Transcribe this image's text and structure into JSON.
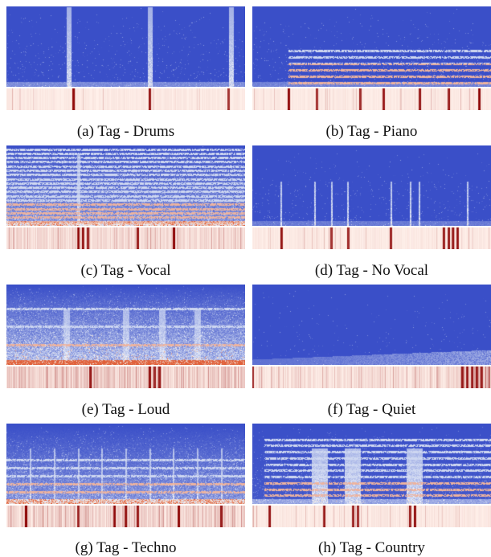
{
  "figure": {
    "panels": [
      {
        "id": "a",
        "caption": "(a) Tag - Drums",
        "pattern": "drums"
      },
      {
        "id": "b",
        "caption": "(b) Tag - Piano",
        "pattern": "piano"
      },
      {
        "id": "c",
        "caption": "(c) Tag - Vocal",
        "pattern": "vocal"
      },
      {
        "id": "d",
        "caption": "(d) Tag - No Vocal",
        "pattern": "novocal"
      },
      {
        "id": "e",
        "caption": "(e) Tag - Loud",
        "pattern": "loud"
      },
      {
        "id": "f",
        "caption": "(f) Tag - Quiet",
        "pattern": "quiet"
      },
      {
        "id": "g",
        "caption": "(g) Tag - Techno",
        "pattern": "techno"
      },
      {
        "id": "h",
        "caption": "(h) Tag - Country",
        "pattern": "country"
      }
    ],
    "colors": {
      "spectrogram_background": "#3a4fc8",
      "spectrogram_light": "#c8d2f0",
      "spectrogram_hot": "#e0603a",
      "heatmap_low": "#fff0ea",
      "heatmap_high": "#8b0000"
    }
  }
}
